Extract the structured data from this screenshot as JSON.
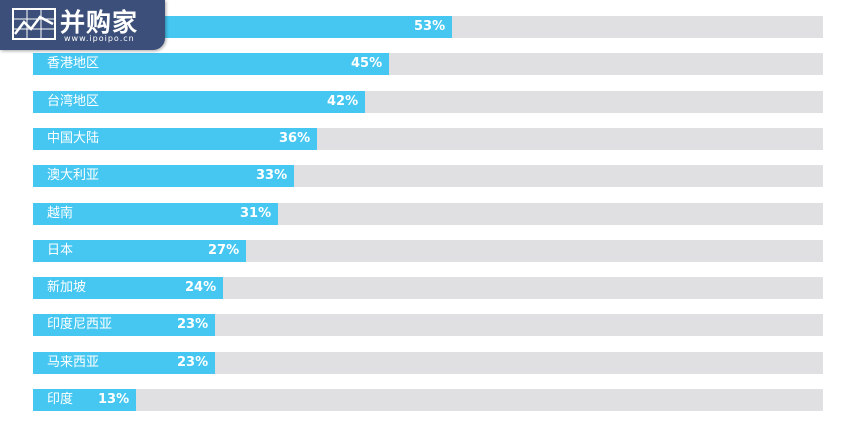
{
  "logo": {
    "name": "并购家",
    "url": "www.ipoipo.cn",
    "icon": "chart-grid-icon"
  },
  "colors": {
    "bar": "#45c7f2",
    "track": "#e0e0e2",
    "label": "#ffffff",
    "logo_bg": "#3b4f7a"
  },
  "chart_data": {
    "type": "bar",
    "orientation": "horizontal",
    "xlim": [
      0,
      100
    ],
    "grid": false,
    "categories": [
      "",
      "香港地区",
      "台湾地区",
      "中国大陆",
      "澳大利亚",
      "越南",
      "日本",
      "新加坡",
      "印度尼西亚",
      "马来西亚",
      "印度"
    ],
    "values": [
      53,
      45,
      42,
      36,
      33,
      31,
      27,
      24,
      23,
      23,
      13
    ],
    "value_labels": [
      "53%",
      "45%",
      "42%",
      "36%",
      "33%",
      "31%",
      "27%",
      "24%",
      "23%",
      "23%",
      "13%"
    ]
  }
}
